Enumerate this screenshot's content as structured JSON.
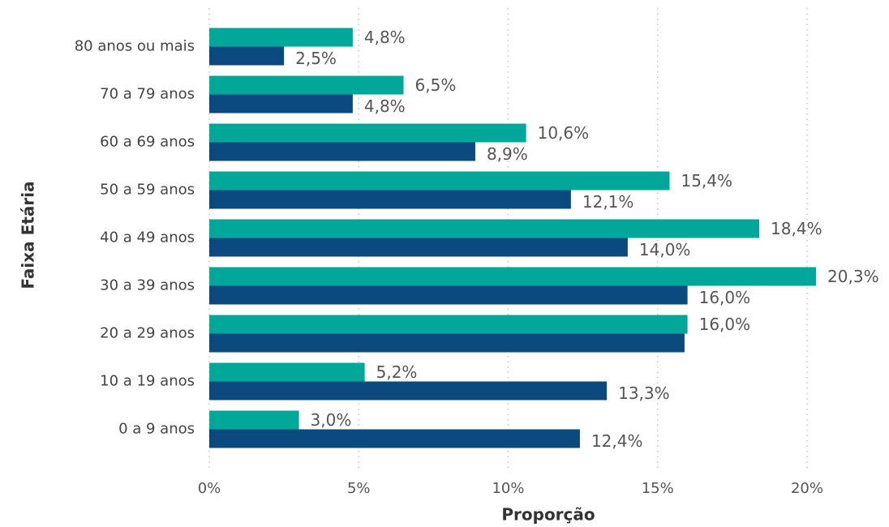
{
  "chart_data": {
    "type": "bar",
    "orientation": "horizontal",
    "categories": [
      "80 anos ou mais",
      "70 a 79 anos",
      "60 a 69 anos",
      "50 a 59 anos",
      "40 a 49 anos",
      "30 a 39 anos",
      "20 a 29 anos",
      "10 a 19 anos",
      "0 a 9 anos"
    ],
    "series": [
      {
        "color": "#01a89a",
        "values": [
          4.8,
          6.5,
          10.6,
          15.4,
          18.4,
          20.3,
          16.0,
          5.2,
          3.0
        ],
        "value_labels": [
          "4,8%",
          "6,5%",
          "10,6%",
          "15,4%",
          "18,4%",
          "20,3%",
          "16,0%",
          "5,2%",
          "3,0%"
        ]
      },
      {
        "color": "#0b4a7f",
        "values": [
          2.5,
          4.8,
          8.9,
          12.1,
          14.0,
          16.0,
          15.9,
          13.3,
          12.4
        ],
        "value_labels": [
          "2,5%",
          "4,8%",
          "8,9%",
          "12,1%",
          "14,0%",
          "16,0%",
          null,
          "13,3%",
          "12,4%"
        ]
      }
    ],
    "xlim": [
      0,
      21
    ],
    "xticks": [
      {
        "value": 0,
        "label": "0%"
      },
      {
        "value": 5,
        "label": "5%"
      },
      {
        "value": 10,
        "label": "10%"
      },
      {
        "value": 15,
        "label": "15%"
      },
      {
        "value": 20,
        "label": "20%"
      }
    ],
    "xlabel": "Proporção",
    "ylabel": "Faixa Etária",
    "grid": true
  }
}
